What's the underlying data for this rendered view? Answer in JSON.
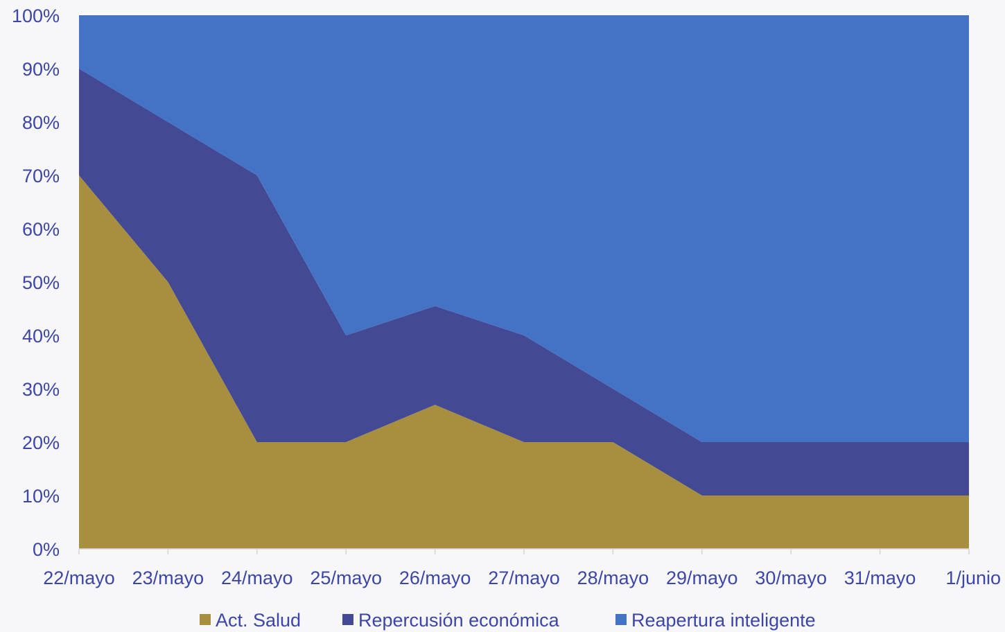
{
  "chart_data": {
    "type": "area",
    "stacked": true,
    "normalized_percent": true,
    "categories": [
      "22/mayo",
      "23/mayo",
      "24/mayo",
      "25/mayo",
      "26/mayo",
      "27/mayo",
      "28/mayo",
      "29/mayo",
      "30/mayo",
      "31/mayo",
      "1/junio"
    ],
    "series": [
      {
        "name": "Act. Salud",
        "color": "#a78f3f",
        "values": [
          70,
          50,
          20,
          20,
          27,
          20,
          20,
          10,
          10,
          10,
          10
        ]
      },
      {
        "name": "Repercusión económica",
        "color": "#434a93",
        "values": [
          20,
          30,
          50,
          20,
          18.5,
          20,
          10,
          10,
          10,
          10,
          10
        ]
      },
      {
        "name": "Reapertura inteligente",
        "color": "#4472c4",
        "values": [
          10,
          20,
          30,
          60,
          54.5,
          60,
          70,
          80,
          80,
          80,
          80
        ]
      }
    ],
    "y_ticks": [
      "0%",
      "10%",
      "20%",
      "30%",
      "40%",
      "50%",
      "60%",
      "70%",
      "80%",
      "90%",
      "100%"
    ],
    "ylim": [
      0,
      100
    ],
    "title": "",
    "xlabel": "",
    "ylabel": "",
    "grid": false,
    "legend_position": "bottom"
  }
}
